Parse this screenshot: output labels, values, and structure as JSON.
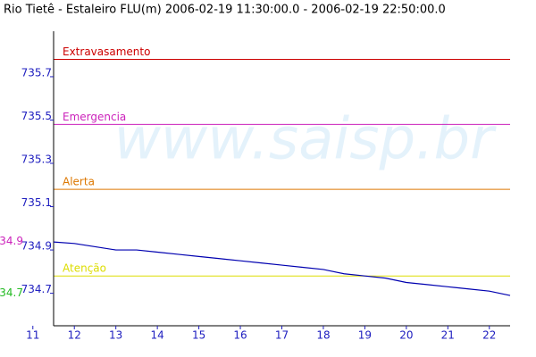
{
  "chart_data": {
    "type": "line",
    "title": "Rio Tietê - Estaleiro FLU(m) 2006-02-19 11:30:00.0 - 2006-02-19 22:50:00.0",
    "watermark": "www.saisp.br",
    "x": [
      11.5,
      12,
      12.5,
      13,
      13.5,
      14,
      14.5,
      15,
      15.5,
      16,
      16.5,
      17,
      17.5,
      18,
      18.5,
      19,
      19.5,
      20,
      20.5,
      21,
      21.5,
      22,
      22.5
    ],
    "values": [
      734.937,
      734.93,
      734.915,
      734.9,
      734.9,
      734.89,
      734.88,
      734.87,
      734.86,
      734.85,
      734.84,
      734.83,
      734.82,
      734.81,
      734.79,
      734.78,
      734.77,
      734.75,
      734.74,
      734.73,
      734.72,
      734.71,
      734.69
    ],
    "color": "#0000b0",
    "xlim": [
      11.5,
      22.5
    ],
    "xticks": [
      11,
      12,
      13,
      14,
      15,
      16,
      17,
      18,
      19,
      20,
      21,
      22
    ],
    "ylim": [
      734.55,
      735.91
    ],
    "yticks": [
      734.7,
      734.9,
      735.1,
      735.3,
      735.5,
      735.7
    ],
    "thresholds": [
      {
        "name": "Extravasamento",
        "value": 735.78,
        "color": "#cc0000"
      },
      {
        "name": "Emergencia",
        "value": 735.48,
        "color": "#cc22bb"
      },
      {
        "name": "Alerta",
        "value": 735.18,
        "color": "#dd7700"
      },
      {
        "name": "Atenção",
        "value": 734.78,
        "color": "#dddd00"
      }
    ],
    "annotations": [
      {
        "text": "734.9",
        "value": 734.94,
        "color": "#cc22bb"
      },
      {
        "text": "734.7",
        "value": 734.7,
        "color": "#22bb22"
      }
    ]
  }
}
